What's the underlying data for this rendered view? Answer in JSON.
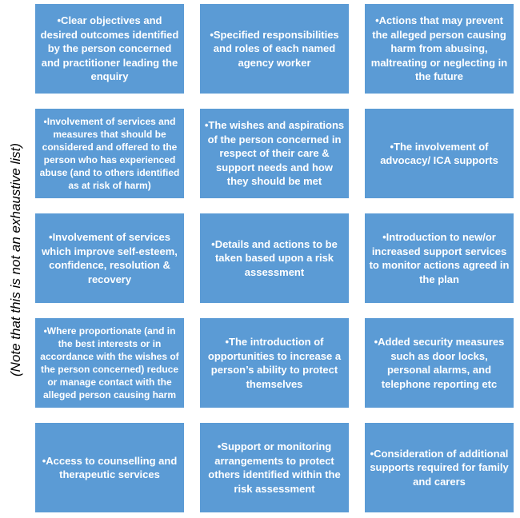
{
  "side_note": "(Note that this is not an exhaustive list)",
  "colors": {
    "box": "#5b9bd5",
    "text": "#ffffff"
  },
  "boxes": [
    "•Clear objectives and desired outcomes identified by the person concerned and practitioner leading the enquiry",
    "•Specified responsibilities and roles of each named agency worker",
    "•Actions that may prevent the alleged person causing harm from abusing, maltreating or neglecting in the future",
    "•Involvement of services and measures that should be considered and offered to the person who has experienced abuse (and to others identified as at risk of harm)",
    "•The wishes and aspirations of the person concerned in respect of their care & support needs and how they should be met",
    "•The involvement of advocacy/ ICA supports",
    "•Involvement of services which improve self-esteem, confidence, resolution & recovery",
    "•Details and actions to be taken based upon a risk assessment",
    "•Introduction to new/or increased support services to monitor actions agreed in the plan",
    "•Where proportionate (and in the best interests or in accordance with the wishes of the person concerned) reduce or manage contact with the alleged person causing harm",
    "•The introduction of opportunities to increase a person’s ability to protect themselves",
    "•Added security measures such as door locks, personal alarms, and telephone reporting etc",
    "•Access to counselling and therapeutic services",
    "•Support or monitoring arrangements to protect others identified within the risk assessment",
    "•Consideration of additional supports required for family and carers"
  ]
}
